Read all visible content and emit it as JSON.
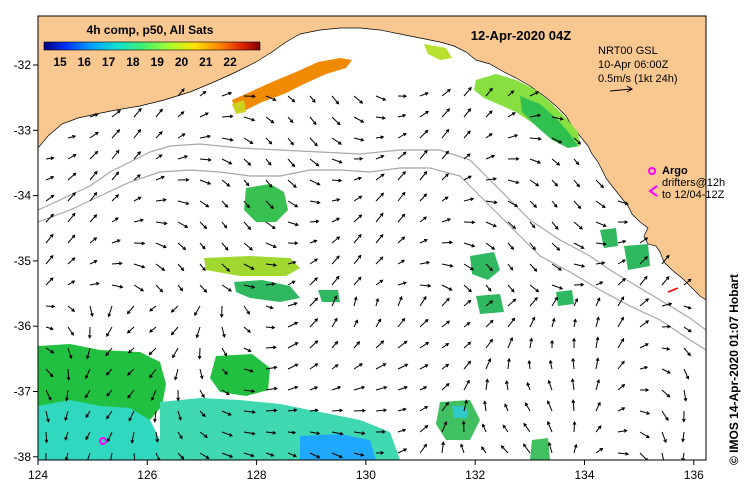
{
  "header": {
    "composite_title": "4h comp, p50, All Sats",
    "date_label": "12-Apr-2020 04Z"
  },
  "colorbar": {
    "tick_labels": [
      "15",
      "16",
      "17",
      "18",
      "19",
      "20",
      "21",
      "22"
    ],
    "colors": [
      "#00007f",
      "#0000d0",
      "#0050ff",
      "#00a8ff",
      "#10e0e0",
      "#50ff90",
      "#a8ff40",
      "#ffe000",
      "#ff9000",
      "#ff3000",
      "#c00000",
      "#800000"
    ]
  },
  "current_legend": {
    "line1": "NRT00 GSL",
    "line2": "10-Apr 06:00Z",
    "line3": "0.5m/s (1kt 24h)"
  },
  "argo_legend": {
    "argo_label": "Argo",
    "drifters_line1": "drifters@12h",
    "drifters_line2": "to 12/04-12Z",
    "argo_color": "#ff00ff"
  },
  "credit": "© IMOS 14-Apr-2020 01:07 Hobart",
  "axes": {
    "x_ticks": [
      "124",
      "126",
      "128",
      "130",
      "132",
      "134",
      "136"
    ],
    "y_ticks": [
      "-32",
      "-33",
      "-34",
      "-35",
      "-36",
      "-37",
      "-38"
    ]
  },
  "colors": {
    "land": "#f8c890",
    "ocean": "#ffffff",
    "bathymetry": "#a8a8a8"
  }
}
